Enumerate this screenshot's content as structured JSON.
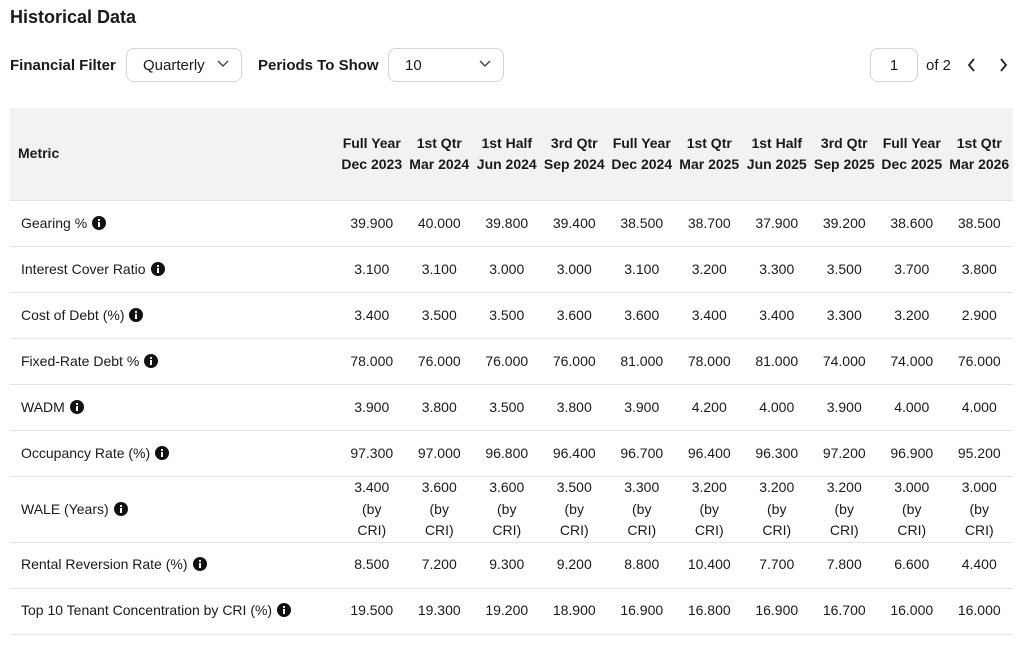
{
  "header": {
    "title": "Historical Data"
  },
  "filters": {
    "financial_filter_label": "Financial Filter",
    "financial_filter_value": "Quarterly",
    "periods_label": "Periods To Show",
    "periods_value": "10"
  },
  "pagination": {
    "page": "1",
    "of": "of 2"
  },
  "table": {
    "columns": [
      "Metric",
      "Full Year Dec 2023",
      "1st Qtr Mar 2024",
      "1st Half Jun 2024",
      "3rd Qtr Sep 2024",
      "Full Year Dec 2024",
      "1st Qtr Mar 2025",
      "1st Half Jun 2025",
      "3rd Qtr Sep 2025",
      "Full Year Dec 2025",
      "1st Qtr Mar 2026"
    ],
    "rows": [
      [
        "Gearing %",
        "39.900",
        "40.000",
        "39.800",
        "39.400",
        "38.500",
        "38.700",
        "37.900",
        "39.200",
        "38.600",
        "38.500"
      ],
      [
        "Interest Cover Ratio",
        "3.100",
        "3.100",
        "3.000",
        "3.000",
        "3.100",
        "3.200",
        "3.300",
        "3.500",
        "3.700",
        "3.800"
      ],
      [
        "Cost of Debt (%)",
        "3.400",
        "3.500",
        "3.500",
        "3.600",
        "3.600",
        "3.400",
        "3.400",
        "3.300",
        "3.200",
        "2.900"
      ],
      [
        "Fixed-Rate Debt %",
        "78.000",
        "76.000",
        "76.000",
        "76.000",
        "81.000",
        "78.000",
        "81.000",
        "74.000",
        "74.000",
        "76.000"
      ],
      [
        "WADM",
        "3.900",
        "3.800",
        "3.500",
        "3.800",
        "3.900",
        "4.200",
        "4.000",
        "3.900",
        "4.000",
        "4.000"
      ],
      [
        "Occupancy Rate (%)",
        "97.300",
        "97.000",
        "96.800",
        "96.400",
        "96.700",
        "96.400",
        "96.300",
        "97.200",
        "96.900",
        "95.200"
      ],
      [
        "WALE (Years)",
        "3.400 (by CRI)",
        "3.600 (by CRI)",
        "3.600 (by CRI)",
        "3.500 (by CRI)",
        "3.300 (by CRI)",
        "3.200 (by CRI)",
        "3.200 (by CRI)",
        "3.200 (by CRI)",
        "3.000 (by CRI)",
        "3.000 (by CRI)"
      ],
      [
        "Rental Reversion Rate (%)",
        "8.500",
        "7.200",
        "9.300",
        "9.200",
        "8.800",
        "10.400",
        "7.700",
        "7.800",
        "6.600",
        "4.400"
      ],
      [
        "Top 10 Tenant Concentration by CRI (%)",
        "19.500",
        "19.300",
        "19.200",
        "18.900",
        "16.900",
        "16.800",
        "16.900",
        "16.700",
        "16.000",
        "16.000"
      ]
    ]
  }
}
